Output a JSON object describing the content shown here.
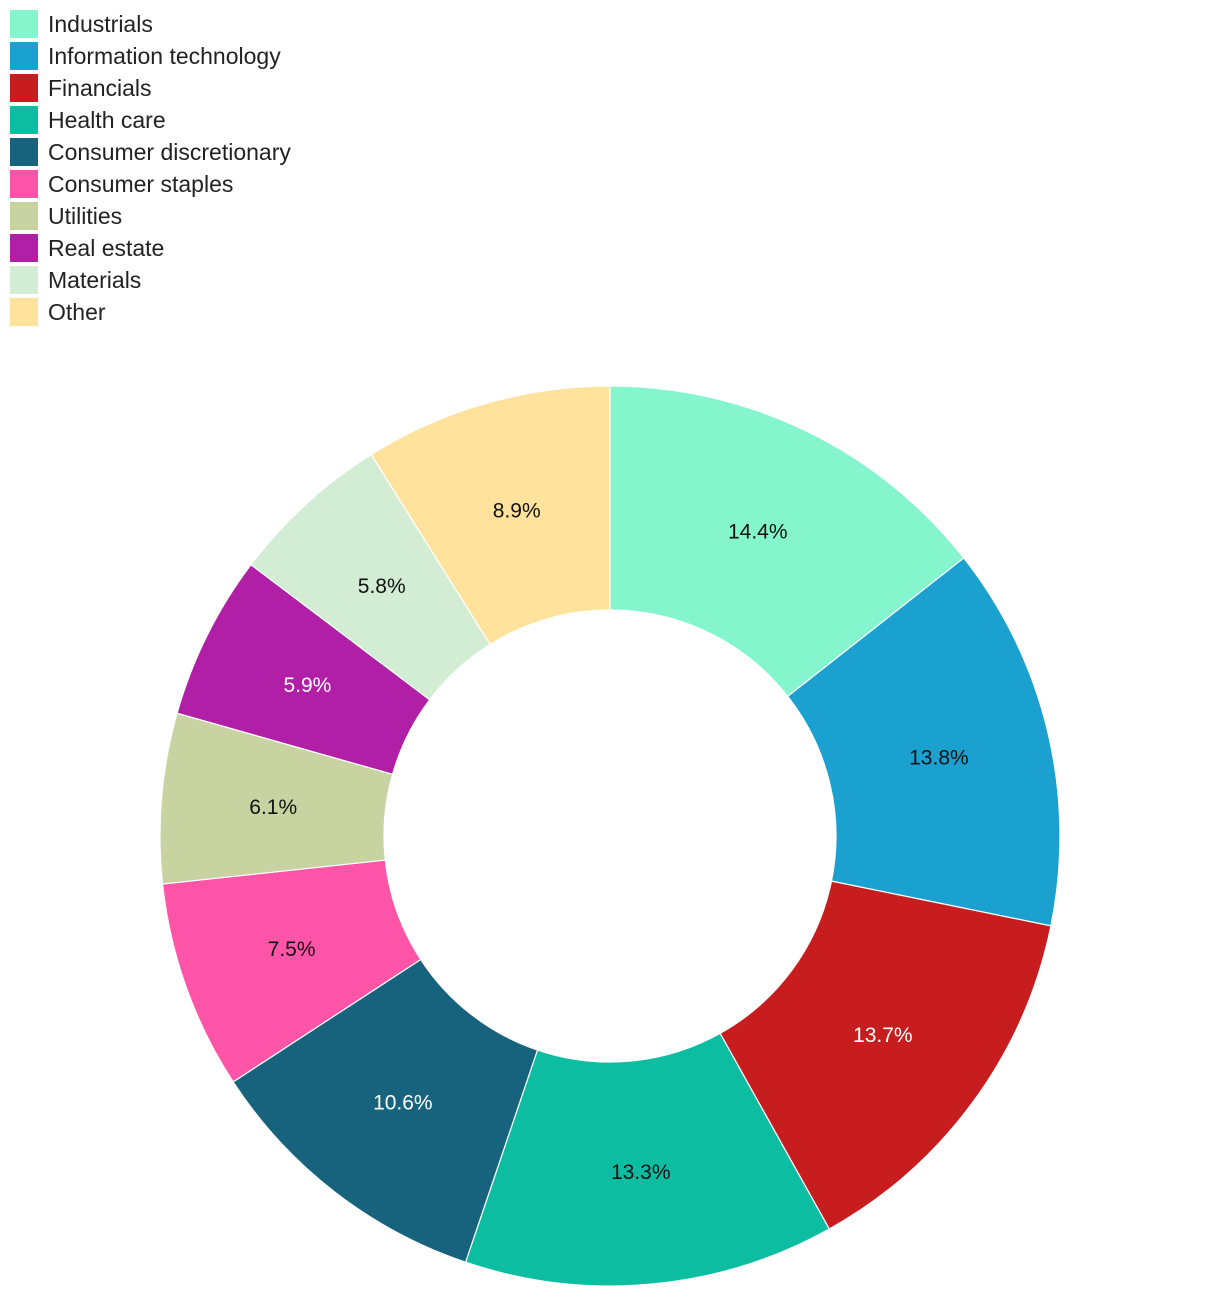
{
  "chart_data": {
    "type": "pie",
    "variant": "donut",
    "legend_position": "top-left",
    "start_angle_deg": 0,
    "direction": "clockwise",
    "slices": [
      {
        "label": "Industrials",
        "value": 14.4,
        "display": "14.4%",
        "color": "#85F5CE",
        "text_color": "#111111"
      },
      {
        "label": "Information technology",
        "value": 13.8,
        "display": "13.8%",
        "color": "#1BA1CF",
        "text_color": "#111111"
      },
      {
        "label": "Financials",
        "value": 13.7,
        "display": "13.7%",
        "color": "#C81D1E",
        "text_color": "#ffffff"
      },
      {
        "label": "Health care",
        "value": 13.3,
        "display": "13.3%",
        "color": "#0CBDA1",
        "text_color": "#111111"
      },
      {
        "label": "Consumer discretionary",
        "value": 10.6,
        "display": "10.6%",
        "color": "#17627C",
        "text_color": "#ffffff"
      },
      {
        "label": "Consumer staples",
        "value": 7.5,
        "display": "7.5%",
        "color": "#FF55A8",
        "text_color": "#111111"
      },
      {
        "label": "Utilities",
        "value": 6.1,
        "display": "6.1%",
        "color": "#C8D3A1",
        "text_color": "#111111"
      },
      {
        "label": "Real estate",
        "value": 5.9,
        "display": "5.9%",
        "color": "#B01FA6",
        "text_color": "#ffffff"
      },
      {
        "label": "Materials",
        "value": 5.8,
        "display": "5.8%",
        "color": "#D2EDD3",
        "text_color": "#111111"
      },
      {
        "label": "Other",
        "value": 8.9,
        "display": "8.9%",
        "color": "#FFE29C",
        "text_color": "#111111"
      }
    ]
  }
}
